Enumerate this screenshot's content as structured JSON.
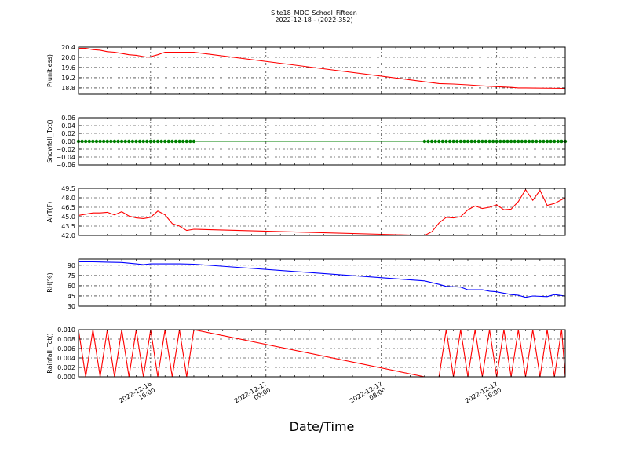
{
  "chart_data": {
    "title": "Site18_MDC_School_Fifteen",
    "subtitle": "2022-12-18 - (2022-352)",
    "xlabel": "Date/Time",
    "x_range": [
      "2022-12-16 11:00",
      "2022-12-17 20:45"
    ],
    "x_ticks": [
      {
        "at": "2022-12-16 16:00",
        "line1": "2022-12-16",
        "line2": "16:00"
      },
      {
        "at": "2022-12-17 00:00",
        "line1": "2022-12-17",
        "line2": "00:00"
      },
      {
        "at": "2022-12-17 08:00",
        "line1": "2022-12-17",
        "line2": "08:00"
      },
      {
        "at": "2022-12-17 16:00",
        "line1": "2022-12-17",
        "line2": "16:00"
      }
    ],
    "panels": [
      {
        "type": "line",
        "ylabel": "P(unitless)",
        "ylim": [
          18.55,
          20.4
        ],
        "yticks": [
          "20.4",
          "20.0",
          "19.6",
          "19.2",
          "18.8"
        ],
        "ytick_values": [
          20.4,
          20.0,
          19.6,
          19.2,
          18.8
        ],
        "color": "#ff0000",
        "points": [
          [
            "2022-12-16 11:00",
            20.35
          ],
          [
            "2022-12-16 11:30",
            20.35
          ],
          [
            "2022-12-16 12:00",
            20.3
          ],
          [
            "2022-12-16 12:30",
            20.28
          ],
          [
            "2022-12-16 13:00",
            20.22
          ],
          [
            "2022-12-16 13:30",
            20.2
          ],
          [
            "2022-12-16 14:00",
            20.15
          ],
          [
            "2022-12-16 14:30",
            20.1
          ],
          [
            "2022-12-16 15:00",
            20.08
          ],
          [
            "2022-12-16 15:30",
            20.03
          ],
          [
            "2022-12-16 15:50",
            20.0
          ],
          [
            "2022-12-16 16:30",
            20.1
          ],
          [
            "2022-12-16 17:00",
            20.2
          ],
          [
            "2022-12-16 18:00",
            20.2
          ],
          [
            "2022-12-16 19:00",
            20.2
          ],
          [
            "2022-12-17 12:00",
            18.97
          ],
          [
            "2022-12-17 13:00",
            18.95
          ],
          [
            "2022-12-17 14:00",
            18.92
          ],
          [
            "2022-12-17 15:00",
            18.88
          ],
          [
            "2022-12-17 16:00",
            18.85
          ],
          [
            "2022-12-17 17:00",
            18.82
          ],
          [
            "2022-12-17 17:30",
            18.8
          ],
          [
            "2022-12-17 18:00",
            18.8
          ],
          [
            "2022-12-17 20:45",
            18.78
          ]
        ]
      },
      {
        "type": "scatter",
        "ylabel": "Snowfall_Tot()",
        "ylim": [
          -0.06,
          0.06
        ],
        "yticks": [
          "0.06",
          "0.04",
          "0.02",
          "0.00",
          "−0.02",
          "−0.04",
          "−0.06"
        ],
        "ytick_values": [
          0.06,
          0.04,
          0.02,
          0.0,
          -0.02,
          -0.04,
          -0.06
        ],
        "color": "#008000",
        "segments": [
          {
            "start": "2022-12-16 11:00",
            "end": "2022-12-16 19:00",
            "value": 0.0
          },
          {
            "start": "2022-12-17 11:00",
            "end": "2022-12-17 20:45",
            "value": 0.0
          }
        ],
        "point_interval_minutes": 15
      },
      {
        "type": "line",
        "ylabel": "AirT(F)",
        "ylim": [
          42.0,
          49.5
        ],
        "yticks": [
          "49.5",
          "48.0",
          "46.5",
          "45.0",
          "43.5",
          "42.0"
        ],
        "ytick_values": [
          49.5,
          48.0,
          46.5,
          45.0,
          43.5,
          42.0
        ],
        "color": "#ff0000",
        "points": [
          [
            "2022-12-16 11:00",
            45.2
          ],
          [
            "2022-12-16 11:30",
            45.4
          ],
          [
            "2022-12-16 12:00",
            45.6
          ],
          [
            "2022-12-16 12:30",
            45.6
          ],
          [
            "2022-12-16 13:00",
            45.7
          ],
          [
            "2022-12-16 13:30",
            45.3
          ],
          [
            "2022-12-16 14:00",
            45.8
          ],
          [
            "2022-12-16 14:30",
            45.1
          ],
          [
            "2022-12-16 15:00",
            44.8
          ],
          [
            "2022-12-16 15:30",
            44.7
          ],
          [
            "2022-12-16 16:00",
            44.9
          ],
          [
            "2022-12-16 16:30",
            45.9
          ],
          [
            "2022-12-16 17:00",
            45.3
          ],
          [
            "2022-12-16 17:30",
            43.9
          ],
          [
            "2022-12-16 18:00",
            43.5
          ],
          [
            "2022-12-16 18:30",
            42.8
          ],
          [
            "2022-12-16 19:00",
            43.0
          ],
          [
            "2022-12-17 11:00",
            42.0
          ],
          [
            "2022-12-17 11:30",
            42.6
          ],
          [
            "2022-12-17 12:00",
            44.0
          ],
          [
            "2022-12-17 12:30",
            44.9
          ],
          [
            "2022-12-17 13:00",
            44.8
          ],
          [
            "2022-12-17 13:30",
            45.0
          ],
          [
            "2022-12-17 14:00",
            46.1
          ],
          [
            "2022-12-17 14:30",
            46.7
          ],
          [
            "2022-12-17 15:00",
            46.3
          ],
          [
            "2022-12-17 15:30",
            46.5
          ],
          [
            "2022-12-17 16:00",
            46.9
          ],
          [
            "2022-12-17 16:30",
            46.1
          ],
          [
            "2022-12-17 17:00",
            46.2
          ],
          [
            "2022-12-17 17:30",
            47.4
          ],
          [
            "2022-12-17 18:00",
            49.3
          ],
          [
            "2022-12-17 18:30",
            47.6
          ],
          [
            "2022-12-17 19:00",
            49.2
          ],
          [
            "2022-12-17 19:30",
            46.8
          ],
          [
            "2022-12-17 20:00",
            47.1
          ],
          [
            "2022-12-17 20:45",
            48.0
          ]
        ]
      },
      {
        "type": "line",
        "ylabel": "RH(%)",
        "ylim": [
          30,
          99
        ],
        "yticks": [
          "90",
          "75",
          "60",
          "45",
          "30"
        ],
        "ytick_values": [
          90,
          75,
          60,
          45,
          30
        ],
        "color": "#0000ff",
        "points": [
          [
            "2022-12-16 11:00",
            95
          ],
          [
            "2022-12-16 12:00",
            95
          ],
          [
            "2022-12-16 13:00",
            94.5
          ],
          [
            "2022-12-16 14:00",
            94
          ],
          [
            "2022-12-16 15:00",
            92
          ],
          [
            "2022-12-16 15:30",
            91
          ],
          [
            "2022-12-16 16:00",
            92
          ],
          [
            "2022-12-16 17:00",
            92
          ],
          [
            "2022-12-16 18:00",
            92
          ],
          [
            "2022-12-16 19:00",
            91.5
          ],
          [
            "2022-12-17 11:00",
            67
          ],
          [
            "2022-12-17 12:00",
            62
          ],
          [
            "2022-12-17 12:30",
            59
          ],
          [
            "2022-12-17 13:30",
            58
          ],
          [
            "2022-12-17 14:00",
            54
          ],
          [
            "2022-12-17 15:00",
            54
          ],
          [
            "2022-12-17 15:30",
            52
          ],
          [
            "2022-12-17 16:00",
            51
          ],
          [
            "2022-12-17 17:00",
            47
          ],
          [
            "2022-12-17 17:30",
            46
          ],
          [
            "2022-12-17 18:00",
            43
          ],
          [
            "2022-12-17 18:30",
            45
          ],
          [
            "2022-12-17 19:30",
            44
          ],
          [
            "2022-12-17 20:00",
            47
          ],
          [
            "2022-12-17 20:45",
            45
          ]
        ]
      },
      {
        "type": "line",
        "ylabel": "Rainfall_Tot()",
        "ylim": [
          0.0,
          0.01
        ],
        "yticks": [
          "0.010",
          "0.008",
          "0.006",
          "0.004",
          "0.002",
          "0.000"
        ],
        "ytick_values": [
          0.01,
          0.008,
          0.006,
          0.004,
          0.002,
          0.0
        ],
        "color": "#ff0000",
        "points": [
          [
            "2022-12-16 11:00",
            0.01
          ],
          [
            "2022-12-16 11:30",
            0.0
          ],
          [
            "2022-12-16 12:00",
            0.01
          ],
          [
            "2022-12-16 12:30",
            0.0
          ],
          [
            "2022-12-16 13:00",
            0.01
          ],
          [
            "2022-12-16 13:30",
            0.0
          ],
          [
            "2022-12-16 14:00",
            0.01
          ],
          [
            "2022-12-16 14:30",
            0.0
          ],
          [
            "2022-12-16 15:00",
            0.01
          ],
          [
            "2022-12-16 15:30",
            0.0
          ],
          [
            "2022-12-16 16:00",
            0.01
          ],
          [
            "2022-12-16 16:30",
            0.0
          ],
          [
            "2022-12-16 17:00",
            0.01
          ],
          [
            "2022-12-16 17:30",
            0.0
          ],
          [
            "2022-12-16 18:00",
            0.01
          ],
          [
            "2022-12-16 18:30",
            0.0
          ],
          [
            "2022-12-16 19:00",
            0.01
          ],
          [
            "2022-12-17 11:00",
            0.0
          ],
          [
            "2022-12-17 12:00",
            0.0
          ],
          [
            "2022-12-17 12:30",
            0.01
          ],
          [
            "2022-12-17 13:00",
            0.0
          ],
          [
            "2022-12-17 13:30",
            0.01
          ],
          [
            "2022-12-17 14:00",
            0.0
          ],
          [
            "2022-12-17 14:30",
            0.01
          ],
          [
            "2022-12-17 15:00",
            0.0
          ],
          [
            "2022-12-17 15:30",
            0.01
          ],
          [
            "2022-12-17 16:00",
            0.0
          ],
          [
            "2022-12-17 16:30",
            0.01
          ],
          [
            "2022-12-17 17:00",
            0.0
          ],
          [
            "2022-12-17 17:30",
            0.01
          ],
          [
            "2022-12-17 18:00",
            0.0
          ],
          [
            "2022-12-17 18:30",
            0.01
          ],
          [
            "2022-12-17 19:00",
            0.0
          ],
          [
            "2022-12-17 19:30",
            0.01
          ],
          [
            "2022-12-17 20:00",
            0.0
          ],
          [
            "2022-12-17 20:30",
            0.01
          ],
          [
            "2022-12-17 20:45",
            0.0
          ]
        ]
      }
    ]
  }
}
